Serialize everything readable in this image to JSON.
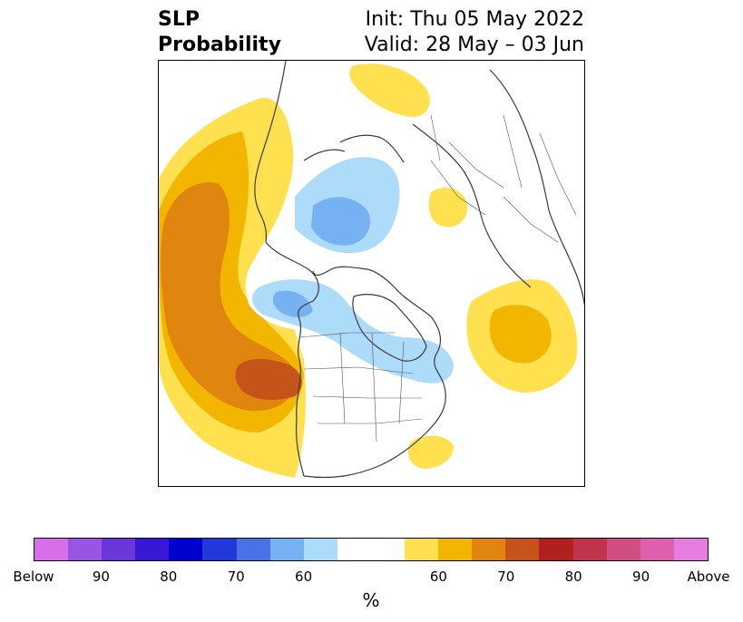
{
  "header": {
    "variable_line1": "SLP",
    "variable_line2": "Probability",
    "init_line": "Init: Thu 05 May 2022",
    "valid_line": "Valid: 28 May – 03 Jun"
  },
  "colorbar": {
    "unit": "%",
    "colors": [
      "#d670e8",
      "#9a55e0",
      "#6a38d8",
      "#3818d4",
      "#0000cc",
      "#2338d8",
      "#4b72e4",
      "#76b1f2",
      "#addcfb",
      "#ffffff",
      "#ffffff",
      "#ffe14f",
      "#f2b500",
      "#e0860f",
      "#c4541a",
      "#b0201f",
      "#c0354e",
      "#cf4f82",
      "#de5fab",
      "#e67ee0"
    ],
    "tick_labels": [
      {
        "text": "Below",
        "index": 0
      },
      {
        "text": "90",
        "index": 2
      },
      {
        "text": "80",
        "index": 4
      },
      {
        "text": "70",
        "index": 6
      },
      {
        "text": "60",
        "index": 8
      },
      {
        "text": "60",
        "index": 12
      },
      {
        "text": "70",
        "index": 14
      },
      {
        "text": "80",
        "index": 16
      },
      {
        "text": "90",
        "index": 18
      },
      {
        "text": "Above",
        "index": 20
      }
    ]
  },
  "map": {
    "colors": {
      "below_light": "#addcfb",
      "below_mid": "#76b1f2",
      "above_60": "#ffe14f",
      "above_65": "#f2b500",
      "above_70": "#e0860f",
      "above_75": "#c4541a",
      "coast": "#3a3a3a"
    }
  }
}
